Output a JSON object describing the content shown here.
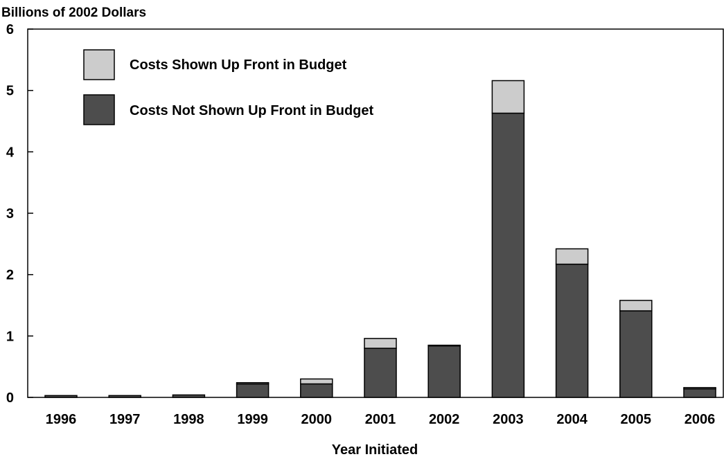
{
  "chart_data": {
    "type": "bar",
    "stacked": true,
    "ylabel": "Billions of 2002 Dollars",
    "xlabel": "Year Initiated",
    "ylim": [
      0,
      6
    ],
    "yticks": [
      "0",
      "1",
      "2",
      "3",
      "4",
      "5",
      "6"
    ],
    "categories": [
      "1996",
      "1997",
      "1998",
      "1999",
      "2000",
      "2001",
      "2002",
      "2003",
      "2004",
      "2005",
      "2006"
    ],
    "series": [
      {
        "name": "Costs Not Shown Up Front in Budget",
        "color": "#4d4d4d",
        "values": [
          0.03,
          0.03,
          0.04,
          0.22,
          0.22,
          0.8,
          0.84,
          4.63,
          2.17,
          1.41,
          0.14
        ]
      },
      {
        "name": "Costs Shown Up Front in Budget",
        "color": "#cccccc",
        "values": [
          0.0,
          0.0,
          0.0,
          0.02,
          0.08,
          0.16,
          0.01,
          0.53,
          0.25,
          0.17,
          0.02
        ]
      }
    ],
    "legend": {
      "placement": "top-left",
      "order": [
        1,
        0
      ]
    },
    "grid": false
  }
}
